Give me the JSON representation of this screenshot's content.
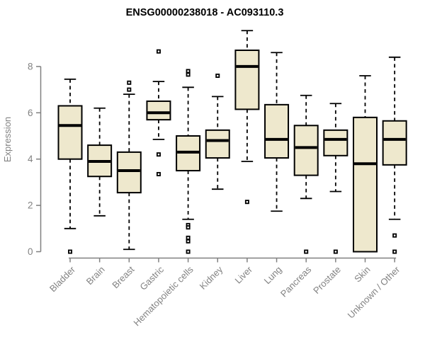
{
  "chart_data": {
    "type": "boxplot",
    "title": "ENSG00000238018 - AC093110.3",
    "xlabel": "",
    "ylabel": "Expression",
    "y_ticks": [
      0,
      2,
      4,
      6,
      8
    ],
    "ylim": [
      0,
      8
    ],
    "grid": false,
    "legend": "none",
    "categories": [
      "Bladder",
      "Brain",
      "Breast",
      "Gastric",
      "Hematopoietic cells",
      "Kidney",
      "Liver",
      "Lung",
      "Pancreas",
      "Prostate",
      "Skin",
      "Unknown / Other"
    ],
    "boxes": [
      {
        "category": "Bladder",
        "whisker_low": 1.0,
        "q1": 4.0,
        "median": 5.45,
        "q3": 6.3,
        "whisker_high": 7.45,
        "outliers": [
          0
        ]
      },
      {
        "category": "Brain",
        "whisker_low": 1.55,
        "q1": 3.25,
        "median": 3.9,
        "q3": 4.6,
        "whisker_high": 6.2,
        "outliers": []
      },
      {
        "category": "Breast",
        "whisker_low": 0.1,
        "q1": 2.55,
        "median": 3.5,
        "q3": 4.3,
        "whisker_high": 6.8,
        "outliers": [
          7.3,
          7.0
        ]
      },
      {
        "category": "Gastric",
        "whisker_low": 4.85,
        "q1": 5.7,
        "median": 6.0,
        "q3": 6.5,
        "whisker_high": 7.35,
        "outliers": [
          8.65,
          4.2,
          3.35
        ]
      },
      {
        "category": "Hematopoietic cells",
        "whisker_low": 1.4,
        "q1": 3.5,
        "median": 4.3,
        "q3": 5.0,
        "whisker_high": 7.1,
        "outliers": [
          7.8,
          7.65,
          1.15,
          1.05,
          0.6,
          0.45,
          0
        ]
      },
      {
        "category": "Kidney",
        "whisker_low": 2.7,
        "q1": 4.05,
        "median": 4.8,
        "q3": 5.25,
        "whisker_high": 6.7,
        "outliers": [
          7.6
        ]
      },
      {
        "category": "Liver",
        "whisker_low": 3.9,
        "q1": 6.15,
        "median": 8.0,
        "q3": 8.7,
        "whisker_high": 9.55,
        "outliers": [
          2.15
        ]
      },
      {
        "category": "Lung",
        "whisker_low": 1.75,
        "q1": 4.05,
        "median": 4.85,
        "q3": 6.35,
        "whisker_high": 8.6,
        "outliers": []
      },
      {
        "category": "Pancreas",
        "whisker_low": 2.3,
        "q1": 3.3,
        "median": 4.5,
        "q3": 5.45,
        "whisker_high": 6.75,
        "outliers": [
          0
        ]
      },
      {
        "category": "Prostate",
        "whisker_low": 2.6,
        "q1": 4.15,
        "median": 4.85,
        "q3": 5.25,
        "whisker_high": 6.4,
        "outliers": [
          0
        ]
      },
      {
        "category": "Skin",
        "whisker_low": 0,
        "q1": 0,
        "median": 3.8,
        "q3": 5.8,
        "whisker_high": 7.6,
        "outliers": []
      },
      {
        "category": "Unknown / Other",
        "whisker_low": 1.4,
        "q1": 3.75,
        "median": 4.85,
        "q3": 5.65,
        "whisker_high": 8.4,
        "outliers": [
          0.7,
          0
        ]
      }
    ],
    "colors": {
      "box_fill": "#EEE8CD",
      "box_border": "#000000",
      "median": "#000000",
      "whisker": "#000000",
      "axis": "#808080",
      "tick_text": "#828282",
      "title_text": "#000000",
      "background": "#FFFFFF"
    }
  }
}
